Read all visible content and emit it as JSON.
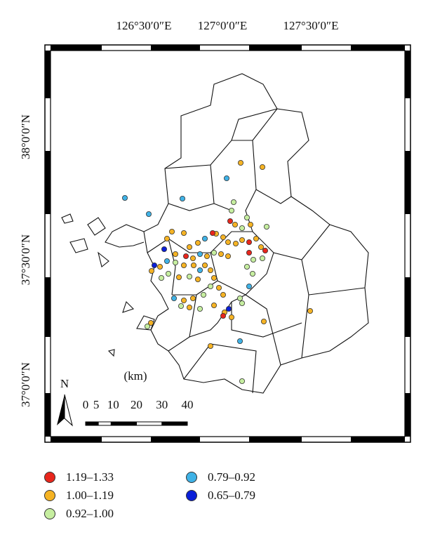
{
  "map": {
    "lon_labels": [
      "126°30′0″E",
      "127°0′0″E",
      "127°30′0″E"
    ],
    "lat_labels": [
      "38°0′0″N",
      "37°30′0″N",
      "37°0′0″N"
    ],
    "north": "N",
    "scale": {
      "unit": "(km)",
      "ticks": [
        0,
        5,
        10,
        20,
        30,
        40
      ]
    }
  },
  "legend": {
    "items": [
      {
        "label": "1.19–1.33",
        "color": "#e8261c"
      },
      {
        "label": "1.00–1.19",
        "color": "#f5b324"
      },
      {
        "label": "0.92–1.00",
        "color": "#c6eea0"
      },
      {
        "label": "0.79–0.92",
        "color": "#3fb2e6"
      },
      {
        "label": "0.65–0.79",
        "color": "#0a1fd8"
      }
    ]
  }
}
